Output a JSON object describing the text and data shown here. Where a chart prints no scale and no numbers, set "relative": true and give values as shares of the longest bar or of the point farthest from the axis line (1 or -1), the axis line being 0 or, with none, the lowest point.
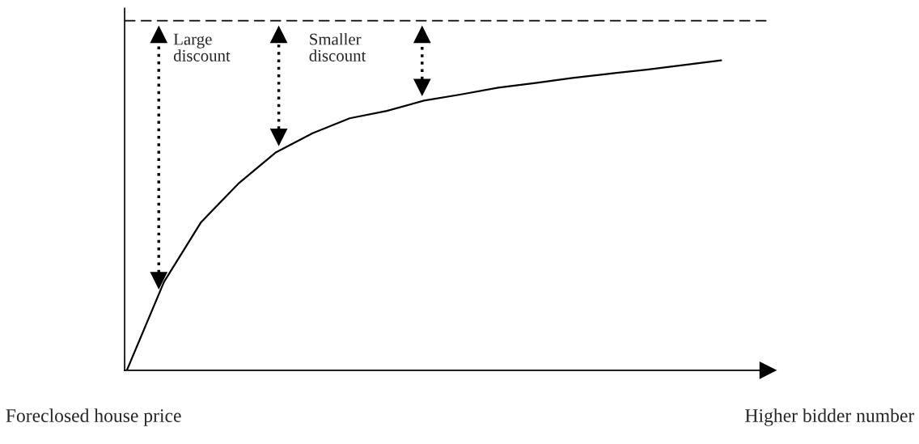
{
  "chart_data": {
    "type": "line",
    "relative": true,
    "categories": [
      null,
      null,
      null,
      null,
      null,
      null,
      null,
      null,
      null,
      null,
      null,
      null,
      null,
      null,
      null,
      null,
      null
    ],
    "series": [
      {
        "color": "#000000",
        "values": [
          0,
          0.285,
          0.478,
          0.602,
          0.702,
          0.765,
          0.813,
          0.837,
          0.87,
          0.89,
          0.912,
          0.927,
          0.943,
          0.957,
          0.97,
          0.985,
          1
        ]
      }
    ],
    "xlabel": "Higher bidder number",
    "ylabel": "Foreclosed house price",
    "ref_lines": [
      {
        "axis": "y",
        "value": 1.128,
        "color": "#000000",
        "line_style": "dashed"
      }
    ],
    "annotations": [
      "Large\ndiscount",
      "Smaller\ndiscount"
    ],
    "legend": false,
    "marker": "none",
    "line_style": "solid"
  }
}
